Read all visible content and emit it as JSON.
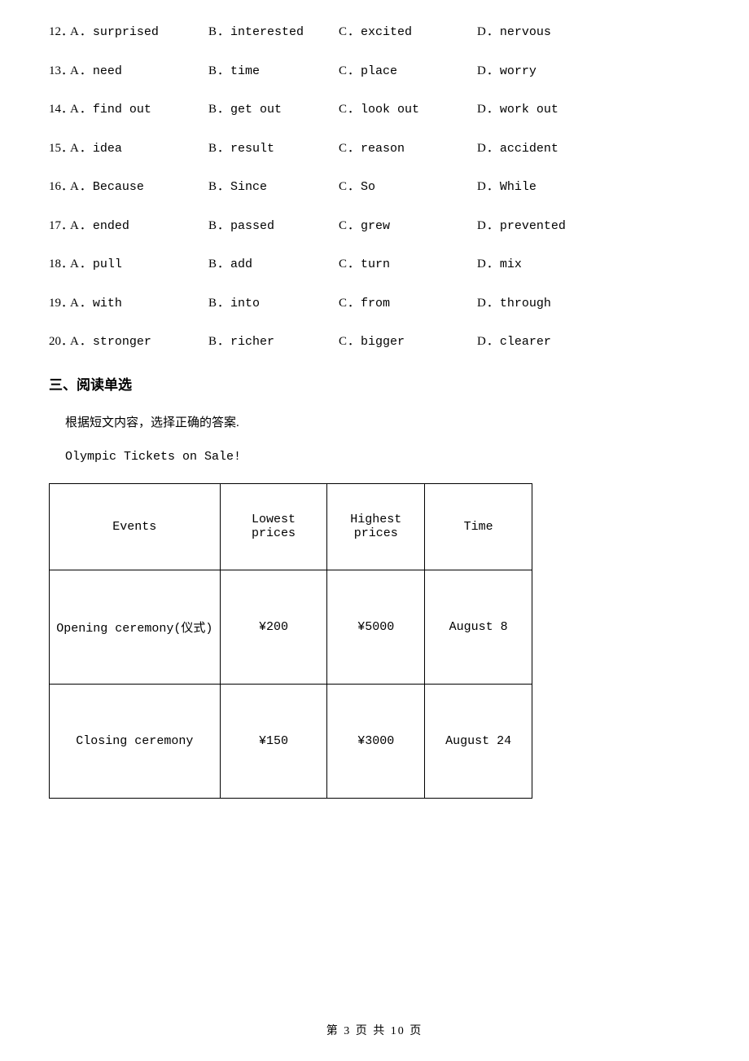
{
  "questions": [
    {
      "num": "12．",
      "A": "surprised",
      "B": "interested",
      "C": "excited",
      "D": "nervous"
    },
    {
      "num": "13．",
      "A": "need",
      "B": "time",
      "C": "place",
      "D": "worry"
    },
    {
      "num": "14．",
      "A": "find out",
      "B": "get out",
      "C": "look out",
      "D": "work out"
    },
    {
      "num": "15．",
      "A": "idea",
      "B": "result",
      "C": "reason",
      "D": "accident"
    },
    {
      "num": "16．",
      "A": "Because",
      "B": "Since",
      "C": "So",
      "D": "While"
    },
    {
      "num": "17．",
      "A": "ended",
      "B": "passed",
      "C": "grew",
      "D": "prevented"
    },
    {
      "num": "18．",
      "A": "pull",
      "B": "add",
      "C": "turn",
      "D": "mix"
    },
    {
      "num": "19．",
      "A": "with",
      "B": "into",
      "C": "from",
      "D": "through"
    },
    {
      "num": "20．",
      "A": "stronger",
      "B": "richer",
      "C": "bigger",
      "D": "clearer"
    }
  ],
  "choice_labels": {
    "A": "A．",
    "B": "B．",
    "C": "C．",
    "D": "D．"
  },
  "section_heading": "三、阅读单选",
  "instruction": "根据短文内容，选择正确的答案.",
  "passage_title": "Olympic Tickets on Sale!",
  "table": {
    "headers": {
      "events": "Events",
      "lowest": "Lowest prices",
      "highest": "Highest prices",
      "time": "Time"
    },
    "rows": [
      {
        "event": "Opening ceremony(仪式)",
        "low": "¥200",
        "high": "¥5000",
        "time": "August 8"
      },
      {
        "event": "Closing ceremony",
        "low": "¥150",
        "high": "¥3000",
        "time": "August 24"
      }
    ]
  },
  "footer": "第 3 页 共 10 页"
}
